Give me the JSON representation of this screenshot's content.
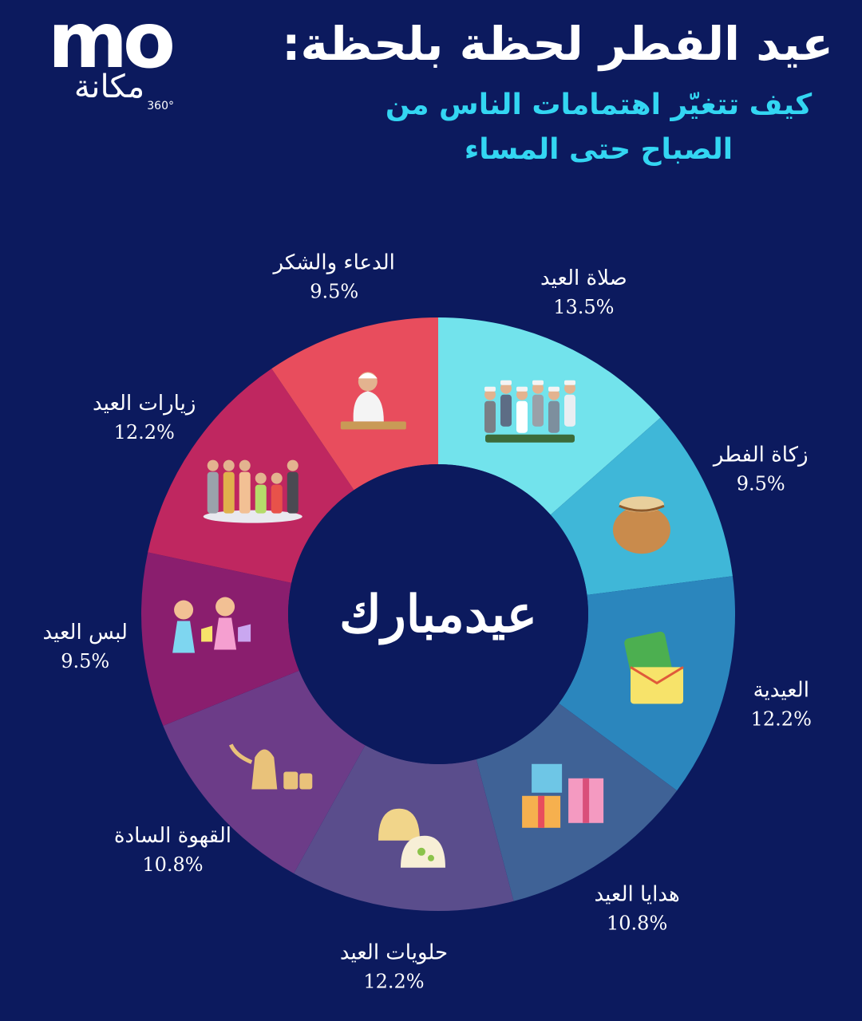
{
  "logo": {
    "mark": "mo",
    "arabic": "مكانة",
    "sub": "360°"
  },
  "header": {
    "title": "عيد الفطر لحظة بلحظة:",
    "subtitle_line1": "كيف تتغيّر اهتمامات الناس من",
    "subtitle_line2": "الصباح حتى المساء"
  },
  "center_text": "عيدمبارك",
  "chart_data": {
    "type": "pie",
    "donut": true,
    "unit": "%",
    "start": "top",
    "direction": "clockwise",
    "slices": [
      {
        "label": "صلاة العيد",
        "value": 13.5,
        "value_label": "13.5%",
        "color": "#72e3ec",
        "icon": "eid-prayer-icon"
      },
      {
        "label": "زكاة الفطر",
        "value": 9.5,
        "value_label": "9.5%",
        "color": "#3fb7d8",
        "icon": "grain-sack-icon"
      },
      {
        "label": "العيدية",
        "value": 12.2,
        "value_label": "12.2%",
        "color": "#2b86bd",
        "icon": "money-envelope-icon"
      },
      {
        "label": "هدايا العيد",
        "value": 10.8,
        "value_label": "10.8%",
        "color": "#3f6296",
        "icon": "gift-boxes-icon"
      },
      {
        "label": "حلويات العيد",
        "value": 12.2,
        "value_label": "12.2%",
        "color": "#5a4d8c",
        "icon": "sweets-icon"
      },
      {
        "label": "القهوة السادة",
        "value": 10.8,
        "value_label": "10.8%",
        "color": "#6c3c88",
        "icon": "coffee-pot-icon"
      },
      {
        "label": "لبس العيد",
        "value": 9.5,
        "value_label": "9.5%",
        "color": "#8a1e6e",
        "icon": "eid-clothes-icon"
      },
      {
        "label": "زيارات العيد",
        "value": 12.2,
        "value_label": "12.2%",
        "color": "#bf2760",
        "icon": "family-visit-icon"
      },
      {
        "label": "الدعاء والشكر",
        "value": 9.5,
        "value_label": "9.5%",
        "color": "#e84d5d",
        "icon": "praying-child-icon"
      }
    ]
  }
}
